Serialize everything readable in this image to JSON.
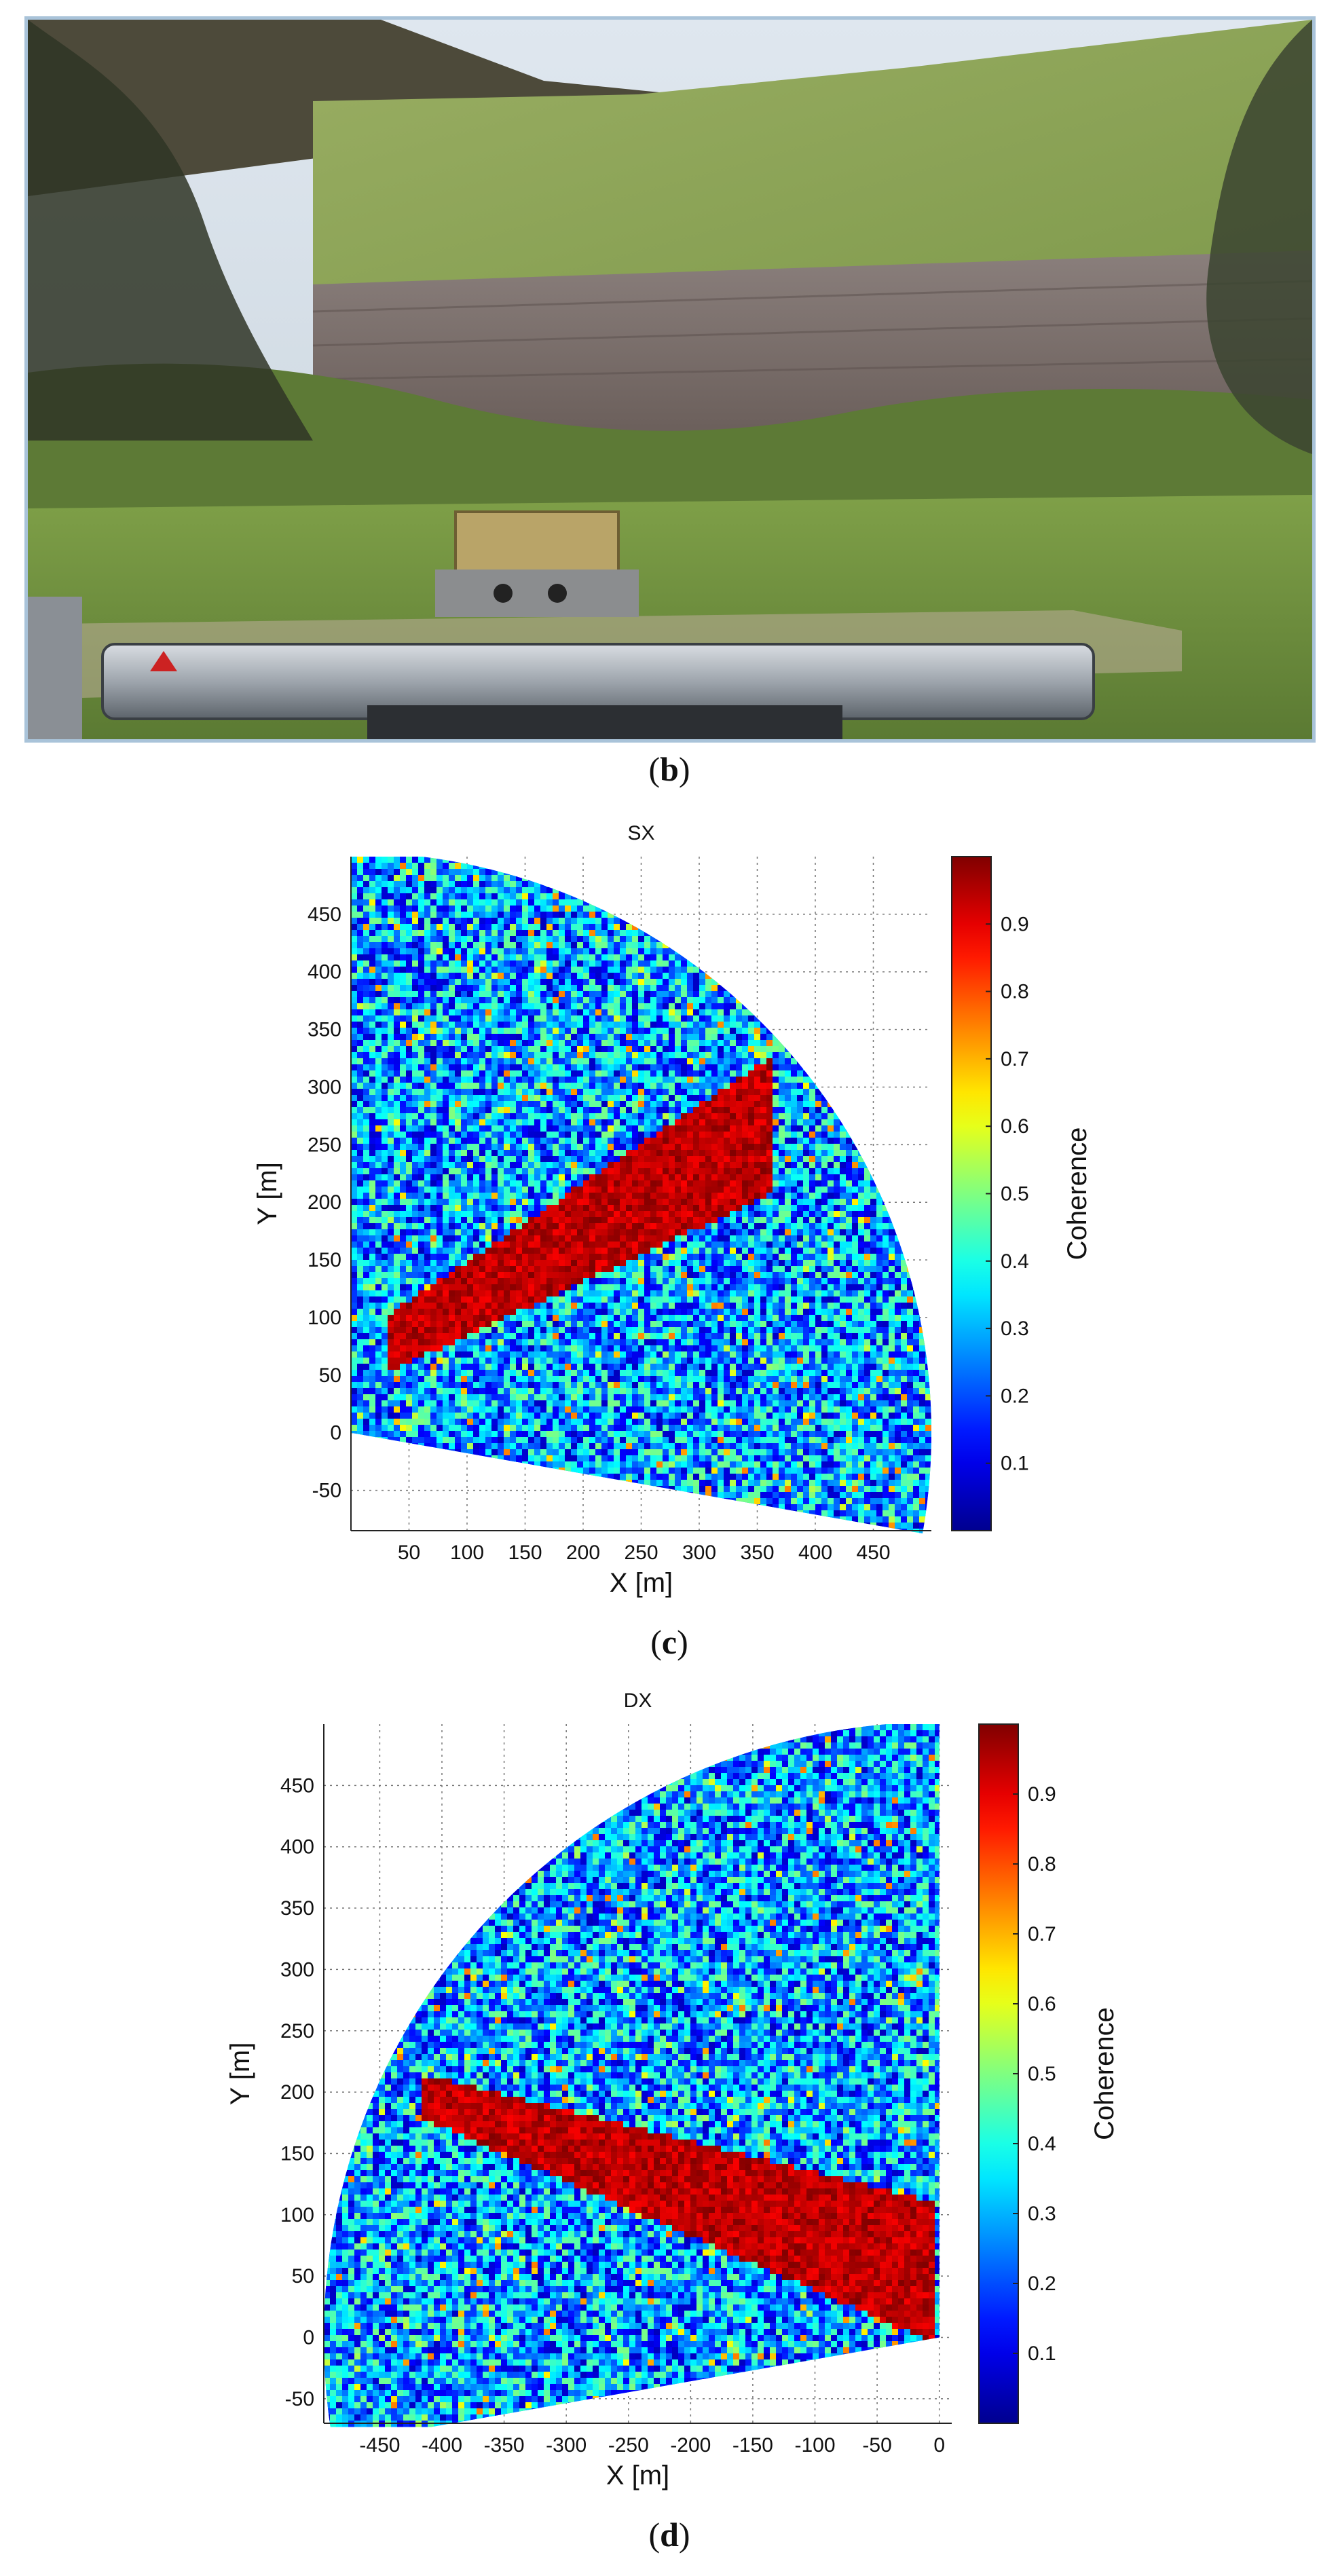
{
  "panels": {
    "b_label": "b",
    "c_label": "c",
    "d_label": "d"
  },
  "colors": {
    "jet": [
      "#00008f",
      "#0000ff",
      "#0080ff",
      "#00ffff",
      "#80ff80",
      "#ffff00",
      "#ff8000",
      "#ff0000",
      "#800000"
    ],
    "photo_frame": "#a9c3d9"
  },
  "chart_data": [
    {
      "type": "heatmap",
      "title": "SX",
      "xlabel": "X [m]",
      "ylabel": "Y [m]",
      "colorbar_label": "Coherence",
      "xlim": [
        0,
        500
      ],
      "ylim": [
        -85,
        500
      ],
      "xticks": [
        50,
        100,
        150,
        200,
        250,
        300,
        350,
        400,
        450
      ],
      "yticks": [
        -50,
        0,
        50,
        100,
        150,
        200,
        250,
        300,
        350,
        400,
        450
      ],
      "colorbar_ticks": [
        0.1,
        0.2,
        0.3,
        0.4,
        0.5,
        0.6,
        0.7,
        0.8,
        0.9
      ],
      "colorbar_range": [
        0,
        1
      ],
      "grid": true,
      "background_coherence": 0.25,
      "high_coherence_region": "dam face, coherence ≈ 0.9–1.0, from about (30,80) to (360,270)"
    },
    {
      "type": "heatmap",
      "title": "DX",
      "xlabel": "X [m]",
      "ylabel": "Y [m]",
      "colorbar_label": "Coherence",
      "xlim": [
        -495,
        10
      ],
      "ylim": [
        -70,
        500
      ],
      "xticks": [
        -450,
        -400,
        -350,
        -300,
        -250,
        -200,
        -150,
        -100,
        -50,
        0
      ],
      "yticks": [
        -50,
        0,
        50,
        100,
        150,
        200,
        250,
        300,
        350,
        400,
        450
      ],
      "colorbar_ticks": [
        0.1,
        0.2,
        0.3,
        0.4,
        0.5,
        0.6,
        0.7,
        0.8,
        0.9
      ],
      "colorbar_range": [
        0,
        1
      ],
      "grid": true,
      "background_coherence": 0.25,
      "high_coherence_region": "dam face, coherence ≈ 0.9–1.0, from about (-420,210) to (-5,10)"
    }
  ]
}
